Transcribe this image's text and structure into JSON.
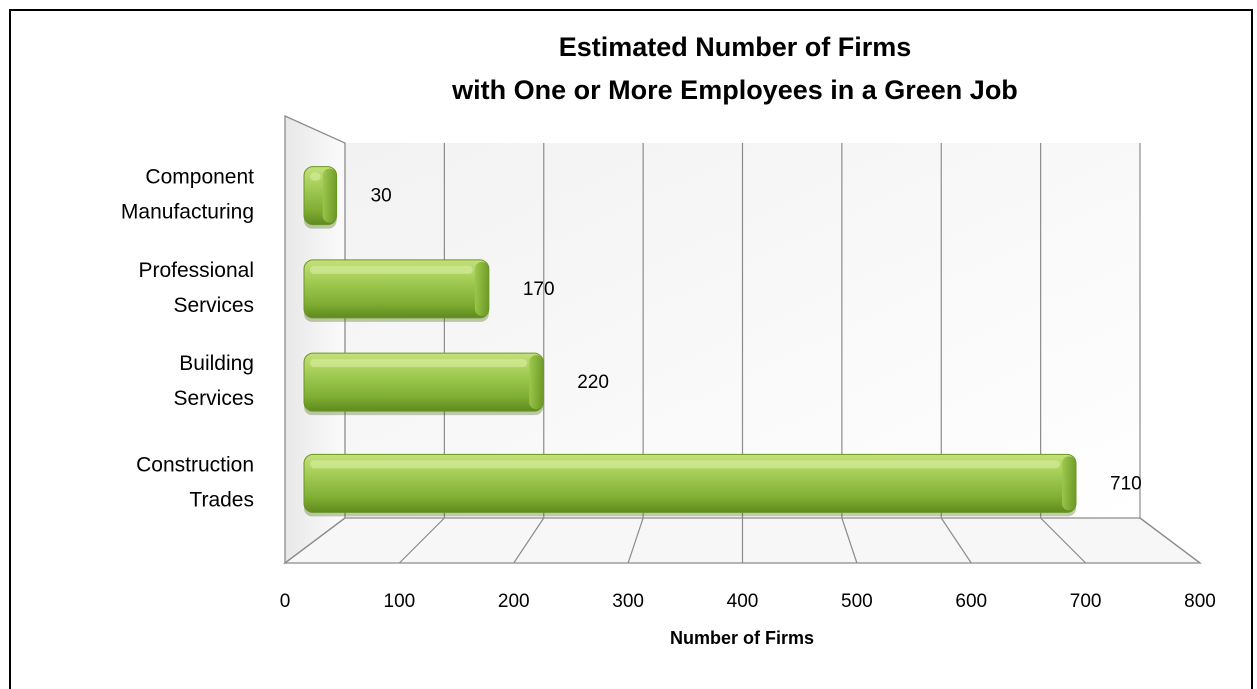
{
  "chart_data": {
    "type": "bar",
    "orientation": "horizontal",
    "title_lines": [
      "Estimated Number of Firms",
      "with One or More Employees in a Green Job"
    ],
    "categories": [
      [
        "Component",
        "Manufacturing"
      ],
      [
        "Professional",
        "Services"
      ],
      [
        "Building",
        "Services"
      ],
      [
        "Construction",
        "Trades"
      ]
    ],
    "values": [
      30,
      170,
      220,
      710
    ],
    "data_labels": [
      "30",
      "170",
      "220",
      "710"
    ],
    "xlabel": "Number of Firms",
    "ylabel": "",
    "xlim": [
      0,
      800
    ],
    "xticks": [
      "0",
      "100",
      "200",
      "300",
      "400",
      "500",
      "600",
      "700",
      "800"
    ],
    "grid": true,
    "style": "3d",
    "colors": {
      "bar": "#8fbc3f",
      "bar_light": "#c4e07a",
      "bar_dark": "#5f8a1e",
      "grid": "#8c8c8c"
    }
  }
}
